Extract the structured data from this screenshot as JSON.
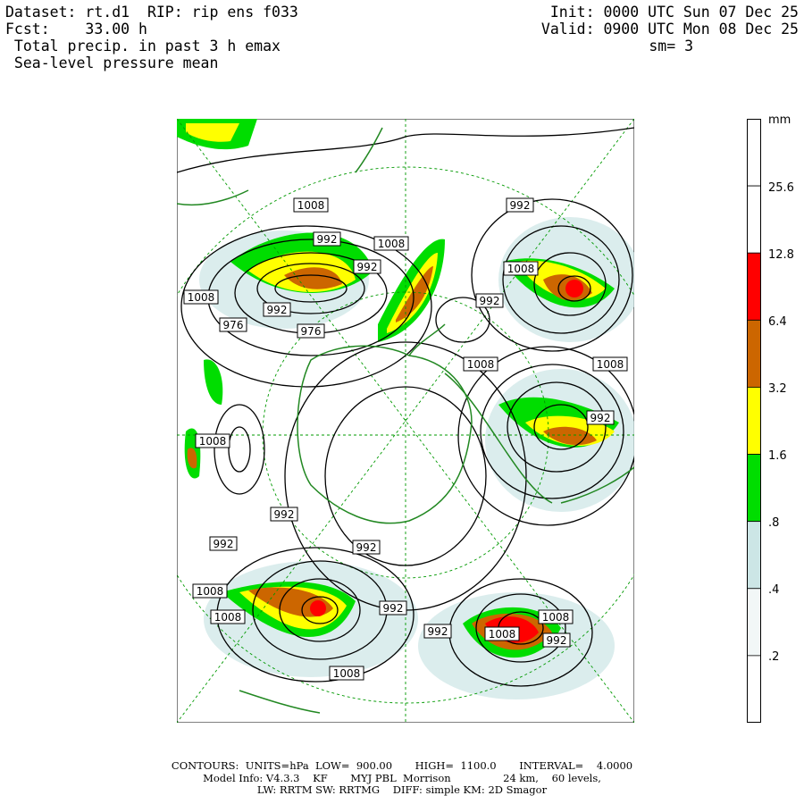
{
  "header": {
    "dataset": "Dataset: rt.d1  RIP: rip ens f033",
    "fcst": "Fcst:    33.00 h",
    "field1": " Total precip. in past 3 h emax",
    "field2": " Sea-level pressure mean",
    "init": "Init: 0000 UTC Sun 07 Dec 25",
    "valid": "Valid: 0900 UTC Mon 08 Dec 25",
    "sm": "sm= 3"
  },
  "legend": {
    "unit": "mm",
    "labels": [
      "25.6",
      "12.8",
      "6.4",
      "3.2",
      "1.6",
      ".8",
      ".4",
      ".2"
    ],
    "colors": [
      "#ffffff",
      "#ffffff",
      "#ff0000",
      "#cc6600",
      "#ffff00",
      "#00dd00",
      "#cce6e6",
      "#f2f7f7",
      "#ffffff"
    ]
  },
  "contour_labels": [
    "1008",
    "992",
    "1008",
    "992",
    "1008",
    "992",
    "976",
    "976",
    "992",
    "1008",
    "992",
    "1008",
    "1008",
    "1008",
    "992",
    "992",
    "992",
    "992",
    "992",
    "1008",
    "1008",
    "992",
    "1008",
    "1008",
    "992",
    "1008",
    "1008"
  ],
  "footer": {
    "line1": "CONTOURS:  UNITS=hPa  LOW=  900.00       HIGH=  1100.0       INTERVAL=    4.0000",
    "line2": "Model Info: V4.3.3    KF       MYJ PBL  Morrison                24 km,    60 levels,",
    "line3": "LW: RRTM SW: RRTMG    DIFF: simple KM: 2D Smagor"
  },
  "colors": {
    "contour": "#000000",
    "coast": "#228822",
    "grid": "#009900",
    "precip_light": "#cce6e6",
    "precip_green": "#00dd00",
    "precip_yellow": "#ffff00",
    "precip_orange": "#cc6600",
    "precip_red": "#ff0000"
  }
}
